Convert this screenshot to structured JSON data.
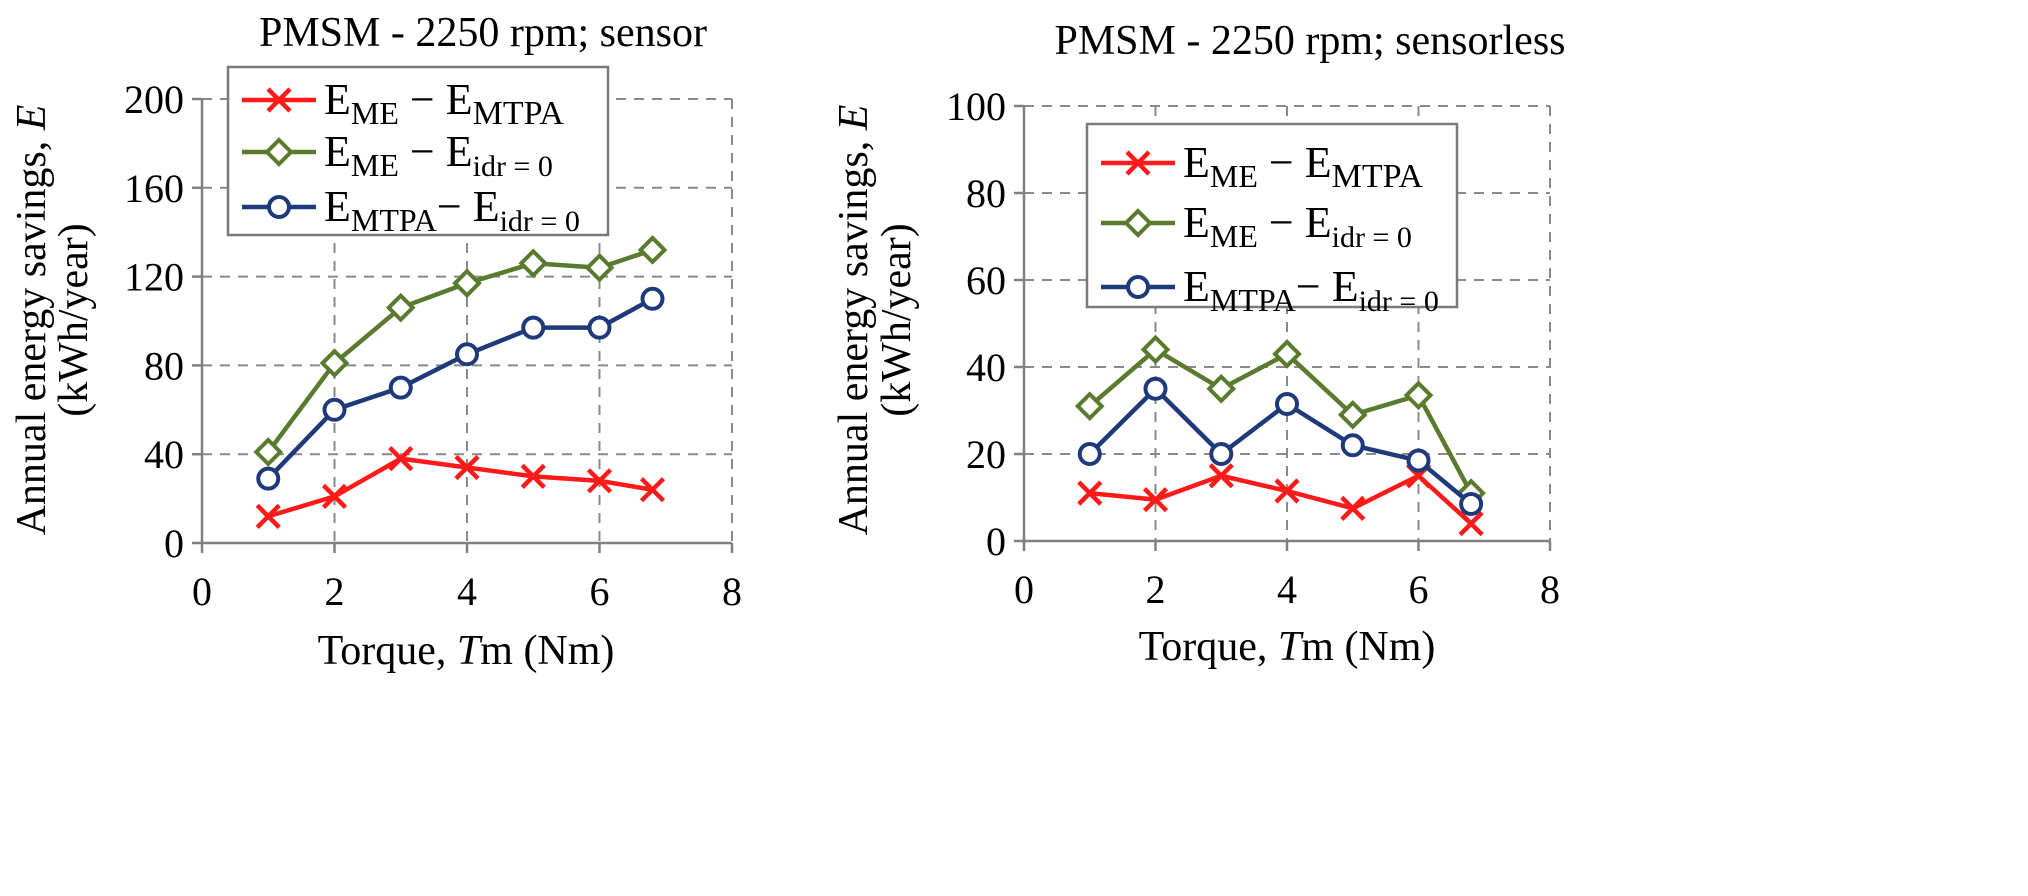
{
  "chart_data": [
    {
      "type": "line",
      "title": "PMSM - 2250 rpm; sensor",
      "xlabel": {
        "pre": "Torque, ",
        "italic": "T",
        "post": "m (Nm)"
      },
      "ylabel": {
        "line1_pre": "Annual energy savings, ",
        "line1_italic": "E",
        "line2": "(kWh/year)"
      },
      "xlim": [
        0,
        8
      ],
      "ylim": [
        0,
        200
      ],
      "xticks": [
        "0",
        "2",
        "4",
        "6",
        "8"
      ],
      "yticks": [
        "0",
        "40",
        "80",
        "120",
        "160",
        "200"
      ],
      "legend_position": "top-left",
      "series": [
        {
          "name": "E_ME − E_MTPA",
          "legend": {
            "a": "E",
            "a_sub": "ME",
            "sep": " − ",
            "b": "E",
            "b_sub": "MTPA"
          },
          "color": "#ff1a1a",
          "marker": "x",
          "x": [
            1,
            2,
            3,
            4,
            5,
            6,
            6.8
          ],
          "y": [
            12,
            21,
            38,
            34,
            30,
            28,
            24
          ]
        },
        {
          "name": "E_ME − E_idr=0",
          "legend": {
            "a": "E",
            "a_sub": "ME",
            "sep": " − ",
            "b": "E",
            "b_sub": "idr = 0"
          },
          "color": "#5a7a2e",
          "marker": "diamond",
          "x": [
            1,
            2,
            3,
            4,
            5,
            6,
            6.8
          ],
          "y": [
            41,
            81,
            106,
            117,
            126,
            124,
            132
          ]
        },
        {
          "name": "E_MTPA − E_idr=0",
          "legend": {
            "a": "E",
            "a_sub": "MTPA",
            "sep": "− ",
            "b": "E",
            "b_sub": "idr = 0"
          },
          "color": "#1f3a7a",
          "marker": "circle",
          "x": [
            1,
            2,
            3,
            4,
            5,
            6,
            6.8
          ],
          "y": [
            29,
            60,
            70,
            85,
            97,
            97,
            110
          ]
        }
      ]
    },
    {
      "type": "line",
      "title": "PMSM - 2250 rpm; sensorless",
      "xlabel": {
        "pre": "Torque, ",
        "italic": "T",
        "post": "m (Nm)"
      },
      "ylabel": {
        "line1_pre": "Annual energy savings, ",
        "line1_italic": "E",
        "line2": "(kWh/year)"
      },
      "xlim": [
        0,
        8
      ],
      "ylim": [
        0,
        100
      ],
      "xticks": [
        "0",
        "2",
        "4",
        "6",
        "8"
      ],
      "yticks": [
        "0",
        "20",
        "40",
        "60",
        "80",
        "100"
      ],
      "legend_position": "top-center",
      "series": [
        {
          "name": "E_ME − E_MTPA",
          "legend": {
            "a": "E",
            "a_sub": "ME",
            "sep": " − ",
            "b": "E",
            "b_sub": "MTPA"
          },
          "color": "#ff1a1a",
          "marker": "x",
          "x": [
            1,
            2,
            3,
            4,
            5,
            6,
            6.8
          ],
          "y": [
            11,
            9.5,
            15,
            11.5,
            7.5,
            15,
            4
          ]
        },
        {
          "name": "E_ME − E_idr=0",
          "legend": {
            "a": "E",
            "a_sub": "ME",
            "sep": " − ",
            "b": "E",
            "b_sub": "idr = 0"
          },
          "color": "#5a7a2e",
          "marker": "diamond",
          "x": [
            1,
            2,
            3,
            4,
            5,
            6,
            6.8
          ],
          "y": [
            31,
            44,
            35,
            43,
            29,
            33.5,
            11
          ]
        },
        {
          "name": "E_MTPA − E_idr=0",
          "legend": {
            "a": "E",
            "a_sub": "MTPA",
            "sep": "− ",
            "b": "E",
            "b_sub": "idr = 0"
          },
          "color": "#1f3a7a",
          "marker": "circle",
          "x": [
            1,
            2,
            3,
            4,
            5,
            6,
            6.8
          ],
          "y": [
            20,
            35,
            20,
            31.5,
            22,
            18.5,
            8.5
          ]
        }
      ]
    }
  ]
}
